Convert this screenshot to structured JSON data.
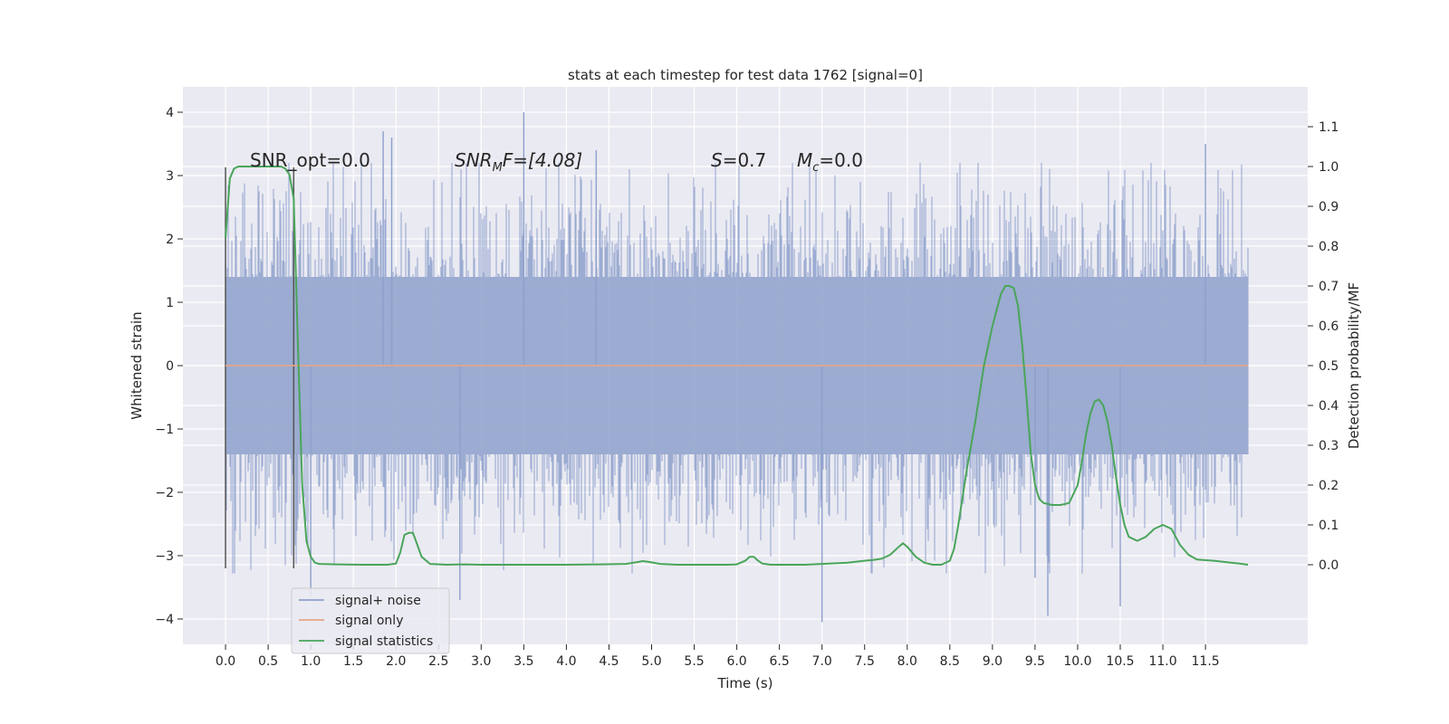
{
  "chart_data": {
    "type": "line",
    "title": "stats at each timestep for test data 1762 [signal=0]",
    "xlabel": "Time (s)",
    "ylabel": "Whitened strain",
    "ylabel_right": "Detection probability/MF",
    "xlim": [
      -0.5,
      12.7
    ],
    "ylim": [
      -4.4,
      4.4
    ],
    "ylim_right": [
      -0.2,
      1.2
    ],
    "x_ticks": [
      "0.0",
      "0.5",
      "1.0",
      "1.5",
      "2.0",
      "2.5",
      "3.0",
      "3.5",
      "4.0",
      "4.5",
      "5.0",
      "5.5",
      "6.0",
      "6.5",
      "7.0",
      "7.5",
      "8.0",
      "8.5",
      "9.0",
      "9.5",
      "10.0",
      "10.5",
      "11.0",
      "11.5"
    ],
    "y_ticks": [
      "4",
      "3",
      "2",
      "1",
      "0",
      "−1",
      "−2",
      "−3",
      "−4"
    ],
    "y_ticks_right": [
      "1.1",
      "1.0",
      "0.9",
      "0.8",
      "0.7",
      "0.6",
      "0.5",
      "0.4",
      "0.3",
      "0.2",
      "0.1",
      "0.0"
    ],
    "grid": true,
    "legend_placement": "lower-left",
    "annotations": {
      "snr_opt": "SNR_opt=0.0",
      "snr_mf_sym": "SNR",
      "snr_mf_sub": "M",
      "snr_mf_rest": "F=[4.08]",
      "s_sym": "S",
      "s_rest": "=0.7",
      "mc_sym": "M",
      "mc_sub": "c",
      "mc_rest": "=0.0"
    },
    "vertical_markers": [
      0.0,
      0.8
    ],
    "series": [
      {
        "name": "signal+ noise",
        "color": "#8da0cb",
        "x_range": [
          0.0,
          12.0
        ],
        "typical_envelope": [
          -1.4,
          1.4
        ],
        "peak_max": 4.0,
        "peak_min": -4.1,
        "spikes": [
          [
            3.5,
            4.0
          ],
          [
            1.85,
            3.7
          ],
          [
            1.95,
            3.6
          ],
          [
            4.35,
            3.4
          ],
          [
            11.5,
            3.5
          ],
          [
            7.0,
            -4.05
          ],
          [
            9.65,
            -3.95
          ],
          [
            1.0,
            -3.65
          ],
          [
            2.75,
            -3.7
          ],
          [
            10.5,
            -3.8
          ],
          [
            9.5,
            -3.35
          ]
        ]
      },
      {
        "name": "signal only",
        "color": "#e5a587",
        "x": [
          0.0,
          12.0
        ],
        "y": [
          0.0,
          0.0
        ]
      },
      {
        "name": "signal statistics",
        "color": "#4aa55a",
        "axis": "right",
        "x": [
          0.0,
          0.05,
          0.1,
          0.15,
          0.25,
          0.35,
          0.45,
          0.55,
          0.65,
          0.7,
          0.75,
          0.8,
          0.85,
          0.9,
          0.95,
          1.0,
          1.05,
          1.1,
          1.3,
          1.6,
          1.9,
          2.0,
          2.05,
          2.1,
          2.15,
          2.2,
          2.25,
          2.3,
          2.4,
          2.6,
          2.8,
          3.0,
          3.5,
          4.0,
          4.4,
          4.7,
          4.9,
          5.0,
          5.1,
          5.3,
          5.6,
          5.9,
          6.0,
          6.1,
          6.15,
          6.2,
          6.25,
          6.3,
          6.4,
          6.6,
          6.8,
          7.0,
          7.3,
          7.5,
          7.6,
          7.7,
          7.8,
          7.9,
          7.95,
          8.0,
          8.1,
          8.2,
          8.3,
          8.4,
          8.5,
          8.55,
          8.6,
          8.65,
          8.7,
          8.8,
          8.9,
          9.0,
          9.1,
          9.15,
          9.2,
          9.25,
          9.3,
          9.35,
          9.4,
          9.45,
          9.5,
          9.55,
          9.6,
          9.7,
          9.8,
          9.9,
          10.0,
          10.05,
          10.1,
          10.15,
          10.2,
          10.25,
          10.3,
          10.35,
          10.4,
          10.45,
          10.5,
          10.55,
          10.6,
          10.7,
          10.8,
          10.9,
          11.0,
          11.05,
          11.1,
          11.15,
          11.2,
          11.3,
          11.4,
          11.6,
          11.8,
          11.9,
          12.0
        ],
        "y": [
          0.82,
          0.97,
          0.995,
          1.0,
          1.0,
          1.0,
          1.0,
          1.0,
          1.0,
          0.995,
          0.98,
          0.92,
          0.55,
          0.2,
          0.06,
          0.02,
          0.005,
          0.002,
          0.001,
          0.0,
          0.0,
          0.003,
          0.03,
          0.075,
          0.08,
          0.08,
          0.05,
          0.02,
          0.002,
          0.0,
          0.001,
          0.0,
          0.0,
          0.0,
          0.001,
          0.002,
          0.009,
          0.006,
          0.002,
          0.0,
          0.0,
          0.0,
          0.001,
          0.01,
          0.02,
          0.02,
          0.01,
          0.003,
          0.0,
          0.0,
          0.0,
          0.002,
          0.005,
          0.01,
          0.012,
          0.015,
          0.025,
          0.045,
          0.054,
          0.045,
          0.02,
          0.005,
          0.0,
          0.0,
          0.01,
          0.04,
          0.1,
          0.17,
          0.24,
          0.36,
          0.5,
          0.6,
          0.68,
          0.7,
          0.7,
          0.695,
          0.65,
          0.55,
          0.42,
          0.28,
          0.2,
          0.165,
          0.155,
          0.15,
          0.15,
          0.155,
          0.2,
          0.26,
          0.33,
          0.38,
          0.41,
          0.415,
          0.4,
          0.36,
          0.3,
          0.22,
          0.15,
          0.1,
          0.07,
          0.06,
          0.07,
          0.09,
          0.1,
          0.095,
          0.09,
          0.07,
          0.05,
          0.025,
          0.013,
          0.01,
          0.005,
          0.003,
          0.0
        ]
      }
    ]
  }
}
